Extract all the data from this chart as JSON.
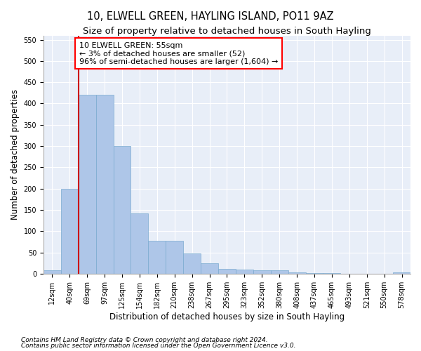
{
  "title": "10, ELWELL GREEN, HAYLING ISLAND, PO11 9AZ",
  "subtitle": "Size of property relative to detached houses in South Hayling",
  "xlabel": "Distribution of detached houses by size in South Hayling",
  "ylabel": "Number of detached properties",
  "footnote1": "Contains HM Land Registry data © Crown copyright and database right 2024.",
  "footnote2": "Contains public sector information licensed under the Open Government Licence v3.0.",
  "annotation_line1": "10 ELWELL GREEN: 55sqm",
  "annotation_line2": "← 3% of detached houses are smaller (52)",
  "annotation_line3": "96% of semi-detached houses are larger (1,604) →",
  "bar_categories": [
    "12sqm",
    "40sqm",
    "69sqm",
    "97sqm",
    "125sqm",
    "154sqm",
    "182sqm",
    "210sqm",
    "238sqm",
    "267sqm",
    "295sqm",
    "323sqm",
    "352sqm",
    "380sqm",
    "408sqm",
    "437sqm",
    "465sqm",
    "493sqm",
    "521sqm",
    "550sqm",
    "578sqm"
  ],
  "bar_values": [
    8,
    200,
    420,
    421,
    300,
    142,
    78,
    78,
    48,
    24,
    12,
    10,
    8,
    8,
    3,
    2,
    1,
    0,
    0,
    0,
    3
  ],
  "bar_color": "#aec6e8",
  "bar_edge_color": "#7aaad0",
  "red_line_x": 1.5,
  "ylim": [
    0,
    560
  ],
  "yticks": [
    0,
    50,
    100,
    150,
    200,
    250,
    300,
    350,
    400,
    450,
    500,
    550
  ],
  "fig_bg_color": "#ffffff",
  "plot_bg_color": "#e8eef8",
  "grid_color": "#ffffff",
  "red_line_color": "#cc0000",
  "title_fontsize": 10.5,
  "subtitle_fontsize": 9.5,
  "axis_label_fontsize": 8.5,
  "tick_fontsize": 7,
  "annotation_fontsize": 8,
  "footnote_fontsize": 6.5
}
